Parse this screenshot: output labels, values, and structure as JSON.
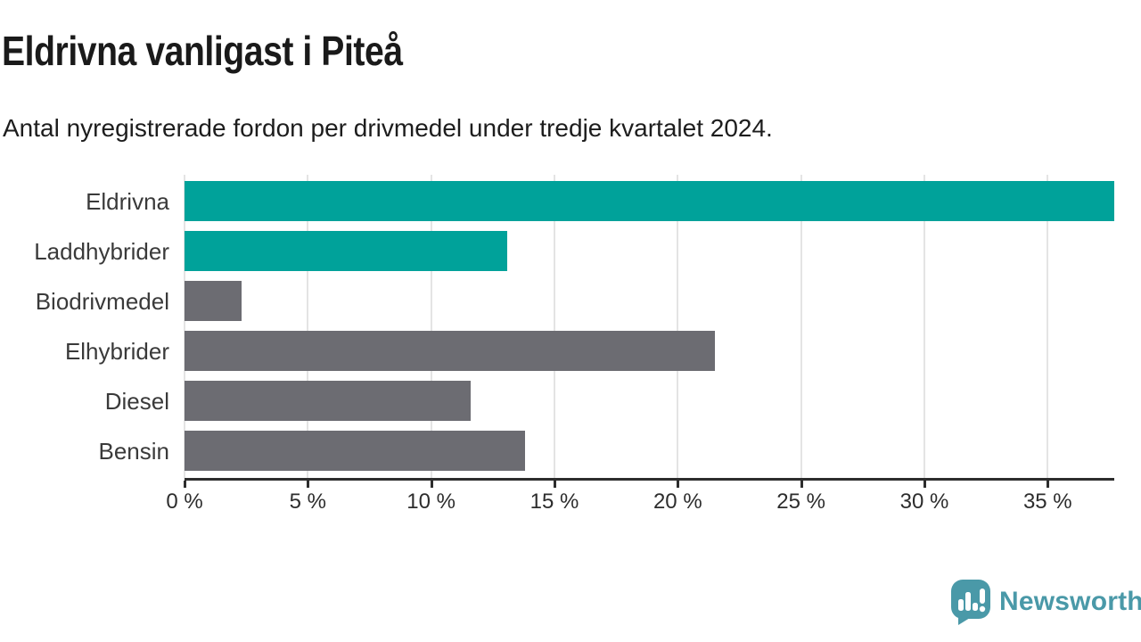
{
  "header": {
    "title": "Eldrivna vanligast i Piteå",
    "subtitle": "Antal nyregistrerade fordon per drivmedel under tredje kvartalet 2024."
  },
  "chart_data": {
    "type": "bar",
    "orientation": "horizontal",
    "title": "Eldrivna vanligast i Piteå",
    "subtitle": "Antal nyregistrerade fordon per drivmedel under tredje kvartalet 2024.",
    "categories": [
      "Eldrivna",
      "Laddhybrider",
      "Biodrivmedel",
      "Elhybrider",
      "Diesel",
      "Bensin"
    ],
    "values": [
      37.7,
      13.1,
      2.3,
      21.5,
      11.6,
      13.8
    ],
    "unit": "%",
    "bar_colors": [
      "#00a29a",
      "#00a29a",
      "#6c6c72",
      "#6c6c72",
      "#6c6c72",
      "#6c6c72"
    ],
    "xlim": [
      0,
      37.7
    ],
    "x_ticks": [
      0,
      5,
      10,
      15,
      20,
      25,
      30,
      35
    ],
    "x_tick_labels": [
      "0 %",
      "5 %",
      "10 %",
      "15 %",
      "20 %",
      "25 %",
      "30 %",
      "35 %"
    ],
    "grid": "vertical",
    "legend": "none"
  },
  "colors": {
    "highlight": "#00a29a",
    "default_bar": "#6c6c72",
    "grid": "#e4e4e4",
    "axis": "#2d2d2d",
    "label_text": "#3a3a3a",
    "brand": "#4a99a8"
  },
  "footer": {
    "brand": "Newsworthy"
  }
}
